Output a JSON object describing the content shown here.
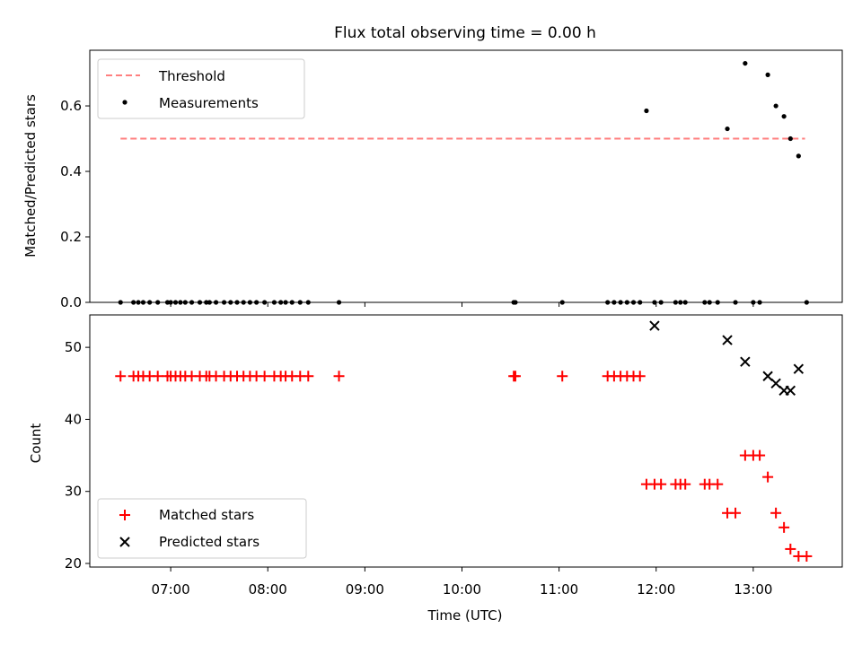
{
  "chart_data": [
    {
      "type": "scatter",
      "title": "Flux total observing time = 0.00 h",
      "ylabel": "Matched/Predicted stars",
      "xlabel": "",
      "xlim": [
        "06:10",
        "13:55"
      ],
      "ylim": [
        0,
        0.77
      ],
      "yticks": [
        "0.0",
        "0.2",
        "0.4",
        "0.6"
      ],
      "ytick_values": [
        0,
        0.2,
        0.4,
        0.6
      ],
      "legend_position": "top-left",
      "series": [
        {
          "name": "Threshold",
          "style": "dashed-line",
          "color": "#ff7f7f",
          "x": [
            "06:29",
            "13:32"
          ],
          "y": [
            0.5,
            0.5
          ]
        },
        {
          "name": "Measurements",
          "style": "dot",
          "color": "#000000",
          "x": [
            "06:29",
            "06:37",
            "06:40",
            "06:43",
            "06:47",
            "06:52",
            "06:58",
            "07:00",
            "07:03",
            "07:06",
            "07:09",
            "07:13",
            "07:18",
            "07:22",
            "07:24",
            "07:28",
            "07:33",
            "07:37",
            "07:41",
            "07:45",
            "07:49",
            "07:53",
            "07:58",
            "08:04",
            "08:08",
            "08:11",
            "08:15",
            "08:20",
            "08:25",
            "08:44",
            "10:32",
            "10:33",
            "11:02",
            "11:30",
            "11:34",
            "11:38",
            "11:42",
            "11:46",
            "11:50",
            "11:54",
            "11:59",
            "12:03",
            "12:12",
            "12:15",
            "12:18",
            "12:30",
            "12:33",
            "12:38",
            "12:44",
            "12:49",
            "12:55",
            "13:00",
            "13:04",
            "13:09",
            "13:14",
            "13:19",
            "13:23",
            "13:28",
            "13:33"
          ],
          "y": [
            0,
            0,
            0,
            0,
            0,
            0,
            0,
            0,
            0,
            0,
            0,
            0,
            0,
            0,
            0,
            0,
            0,
            0,
            0,
            0,
            0,
            0,
            0,
            0,
            0,
            0,
            0,
            0,
            0,
            0,
            0,
            0,
            0,
            0,
            0,
            0,
            0,
            0,
            0,
            0.585,
            0,
            0,
            0,
            0,
            0,
            0,
            0,
            0,
            0.53,
            0,
            0.73,
            0,
            0,
            0.695,
            0.6,
            0.568,
            0.5,
            0.447,
            0
          ]
        }
      ]
    },
    {
      "type": "scatter",
      "title": "",
      "ylabel": "Count",
      "xlabel": "Time (UTC)",
      "xlim": [
        "06:10",
        "13:55"
      ],
      "ylim": [
        19.5,
        54.5
      ],
      "xticks": [
        "07:00",
        "08:00",
        "09:00",
        "10:00",
        "11:00",
        "12:00",
        "13:00"
      ],
      "yticks": [
        "20",
        "30",
        "40",
        "50"
      ],
      "ytick_values": [
        20,
        30,
        40,
        50
      ],
      "legend_position": "bottom-left",
      "series": [
        {
          "name": "Matched stars",
          "marker": "plus",
          "color": "#ff0000",
          "x": [
            "06:29",
            "06:37",
            "06:40",
            "06:43",
            "06:47",
            "06:52",
            "06:58",
            "07:00",
            "07:03",
            "07:06",
            "07:09",
            "07:13",
            "07:18",
            "07:22",
            "07:24",
            "07:28",
            "07:33",
            "07:37",
            "07:41",
            "07:45",
            "07:49",
            "07:53",
            "07:58",
            "08:04",
            "08:08",
            "08:11",
            "08:15",
            "08:20",
            "08:25",
            "08:44",
            "10:32",
            "10:33",
            "11:02",
            "11:30",
            "11:34",
            "11:38",
            "11:42",
            "11:46",
            "11:50",
            "11:54",
            "11:59",
            "12:03",
            "12:12",
            "12:15",
            "12:18",
            "12:30",
            "12:33",
            "12:38",
            "12:44",
            "12:49",
            "12:55",
            "13:00",
            "13:04",
            "13:09",
            "13:14",
            "13:19",
            "13:23",
            "13:28",
            "13:33"
          ],
          "y": [
            46,
            46,
            46,
            46,
            46,
            46,
            46,
            46,
            46,
            46,
            46,
            46,
            46,
            46,
            46,
            46,
            46,
            46,
            46,
            46,
            46,
            46,
            46,
            46,
            46,
            46,
            46,
            46,
            46,
            46,
            46,
            46,
            46,
            46,
            46,
            46,
            46,
            46,
            46,
            31,
            31,
            31,
            31,
            31,
            31,
            31,
            31,
            31,
            27,
            27,
            35,
            35,
            35,
            32,
            27,
            25,
            22,
            21,
            21
          ]
        },
        {
          "name": "Predicted stars",
          "marker": "x",
          "color": "#000000",
          "x": [
            "11:59",
            "12:44",
            "12:55",
            "13:09",
            "13:14",
            "13:19",
            "13:23",
            "13:28"
          ],
          "y": [
            53,
            51,
            48,
            46,
            45,
            44,
            44,
            47
          ]
        }
      ]
    }
  ]
}
